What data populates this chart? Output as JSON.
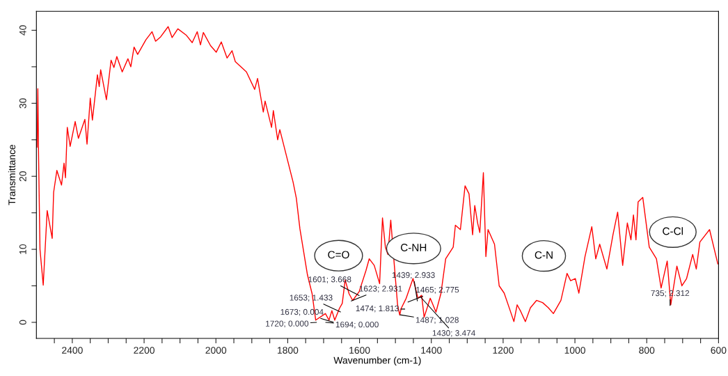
{
  "chart_data": {
    "type": "line",
    "xlabel": "Wavenumber (cm-1)",
    "ylabel": "Transmittance",
    "xlim": [
      2500,
      600
    ],
    "ylim": [
      -2.2,
      42.6
    ],
    "xticks": [
      {
        "value": 2450,
        "label": null
      },
      2400,
      {
        "value": 2350,
        "label": null
      },
      {
        "value": 2300,
        "label": null
      },
      {
        "value": 2250,
        "label": null
      },
      2200,
      {
        "value": 2150,
        "label": null
      },
      {
        "value": 2100,
        "label": null
      },
      {
        "value": 2050,
        "label": null
      },
      2000,
      {
        "value": 1950,
        "label": null
      },
      {
        "value": 1900,
        "label": null
      },
      {
        "value": 1850,
        "label": null
      },
      1800,
      {
        "value": 1750,
        "label": null
      },
      {
        "value": 1700,
        "label": null
      },
      {
        "value": 1650,
        "label": null
      },
      1600,
      {
        "value": 1550,
        "label": null
      },
      {
        "value": 1500,
        "label": null
      },
      {
        "value": 1450,
        "label": null
      },
      1400,
      {
        "value": 1350,
        "label": null
      },
      {
        "value": 1300,
        "label": null
      },
      {
        "value": 1250,
        "label": null
      },
      1200,
      {
        "value": 1150,
        "label": null
      },
      {
        "value": 1100,
        "label": null
      },
      {
        "value": 1050,
        "label": null
      },
      1000,
      {
        "value": 950,
        "label": null
      },
      {
        "value": 900,
        "label": null
      },
      {
        "value": 850,
        "label": null
      },
      800,
      {
        "value": 750,
        "label": null
      },
      {
        "value": 700,
        "label": null
      },
      {
        "value": 650,
        "label": null
      },
      600
    ],
    "yticks": [
      0,
      {
        "value": 5,
        "label": null
      },
      10,
      {
        "value": 15,
        "label": null
      },
      20,
      {
        "value": 25,
        "label": null
      },
      30,
      {
        "value": 35,
        "label": null
      },
      40
    ],
    "grid": false,
    "marker": "none",
    "line_style": "solid",
    "series": [
      {
        "color": "#ff0000",
        "x": [
          2498,
          2496,
          2494,
          2490,
          2481,
          2470,
          2456,
          2452,
          2443,
          2430,
          2423,
          2419,
          2414,
          2406,
          2392,
          2383,
          2365,
          2359,
          2350,
          2344,
          2330,
          2325,
          2321,
          2305,
          2292,
          2284,
          2276,
          2261,
          2245,
          2237,
          2228,
          2218,
          2195,
          2178,
          2168,
          2154,
          2133,
          2122,
          2106,
          2082,
          2066,
          2052,
          2043,
          2035,
          2015,
          1999,
          1985,
          1969,
          1955,
          1946,
          1915,
          1892,
          1884,
          1868,
          1863,
          1845,
          1840,
          1828,
          1822,
          1785,
          1776,
          1766,
          1756,
          1745,
          1732,
          1722,
          1695,
          1685,
          1677,
          1669,
          1656,
          1648,
          1640,
          1629,
          1619,
          1601,
          1582,
          1573,
          1559,
          1544,
          1536,
          1528,
          1521,
          1513,
          1504,
          1494,
          1488,
          1484,
          1470,
          1451,
          1437,
          1427,
          1420,
          1403,
          1387,
          1373,
          1360,
          1339,
          1333,
          1319,
          1306,
          1295,
          1285,
          1279,
          1271,
          1265,
          1255,
          1248,
          1242,
          1224,
          1211,
          1197,
          1181,
          1170,
          1161,
          1151,
          1138,
          1124,
          1107,
          1090,
          1074,
          1060,
          1039,
          1022,
          1012,
          999,
          989,
          972,
          953,
          942,
          931,
          911,
          894,
          881,
          867,
          854,
          844,
          837,
          830,
          824,
          811,
          793,
          773,
          760,
          743,
          733,
          716,
          702,
          689,
          672,
          662,
          652,
          625,
          602
        ],
        "values": [
          24,
          32,
          23,
          10,
          5.1,
          15.3,
          11.5,
          17.8,
          20.8,
          18.8,
          21.8,
          19.8,
          26.7,
          24.1,
          27.5,
          25.2,
          27.8,
          24.4,
          30.7,
          27.7,
          33.9,
          32.3,
          34.6,
          30.5,
          35.9,
          34.9,
          36.4,
          34.3,
          36.1,
          35.0,
          37.7,
          36.7,
          38.7,
          39.8,
          38.5,
          39.1,
          40.5,
          39.0,
          40.2,
          39.3,
          38.3,
          39.8,
          38.0,
          39.7,
          37.9,
          37.0,
          38.4,
          36.2,
          37.2,
          35.7,
          34.3,
          31.9,
          33.4,
          28.8,
          30.3,
          26.7,
          29.0,
          25.0,
          26.4,
          19.2,
          17.0,
          12.8,
          9.8,
          6.5,
          3.9,
          0.3,
          1.2,
          0.3,
          1.6,
          0.3,
          1.9,
          2.6,
          5.8,
          3.9,
          3.0,
          4.2,
          7.1,
          8.7,
          7.8,
          5.3,
          14.3,
          10.3,
          9.3,
          14.0,
          8.4,
          2.4,
          1.0,
          1.9,
          3.3,
          6.0,
          3.3,
          3.7,
          0.7,
          3.3,
          1.4,
          4.0,
          8.7,
          10.3,
          13.3,
          12.7,
          18.7,
          17.6,
          12.0,
          16.0,
          13.6,
          12.3,
          20.5,
          9.0,
          12.7,
          10.7,
          5.0,
          4.0,
          1.7,
          0.1,
          2.4,
          1.5,
          0.1,
          2.0,
          3.0,
          2.7,
          2.0,
          1.2,
          3.0,
          6.7,
          5.7,
          6.0,
          4.0,
          9.0,
          13.1,
          8.7,
          10.7,
          7.3,
          12.0,
          15.1,
          7.8,
          13.6,
          11.3,
          14.7,
          11.3,
          16.5,
          17.1,
          10.3,
          8.7,
          4.7,
          8.4,
          2.4,
          7.7,
          5.0,
          6.0,
          9.3,
          7.3,
          11.0,
          12.7,
          8.0
        ]
      }
    ],
    "annotations": [
      "C=O",
      "C-NH",
      "C-N",
      "C-Cl",
      {
        "text": "1720; 0.000",
        "x": 1720,
        "y": 0.0
      },
      {
        "text": "1694; 0.000",
        "x": 1694,
        "y": 0.0
      },
      {
        "text": "1673; 0.004",
        "x": 1673,
        "y": 0.004
      },
      {
        "text": "1653; 1.433",
        "x": 1653,
        "y": 1.433
      },
      {
        "text": "1601; 3.668",
        "x": 1601,
        "y": 3.668
      },
      {
        "text": "1623; 2.931",
        "x": 1623,
        "y": 2.931
      },
      {
        "text": "1474; 1.813",
        "x": 1474,
        "y": 1.813
      },
      {
        "text": "1487; 1.028",
        "x": 1487,
        "y": 1.028
      },
      {
        "text": "1465; 2.775",
        "x": 1465,
        "y": 2.775
      },
      {
        "text": "1439; 2.933",
        "x": 1439,
        "y": 2.933
      },
      {
        "text": "1430; 3.474",
        "x": 1430,
        "y": 3.474
      },
      {
        "text": "735; 2.312",
        "x": 735,
        "y": 2.312
      }
    ]
  }
}
